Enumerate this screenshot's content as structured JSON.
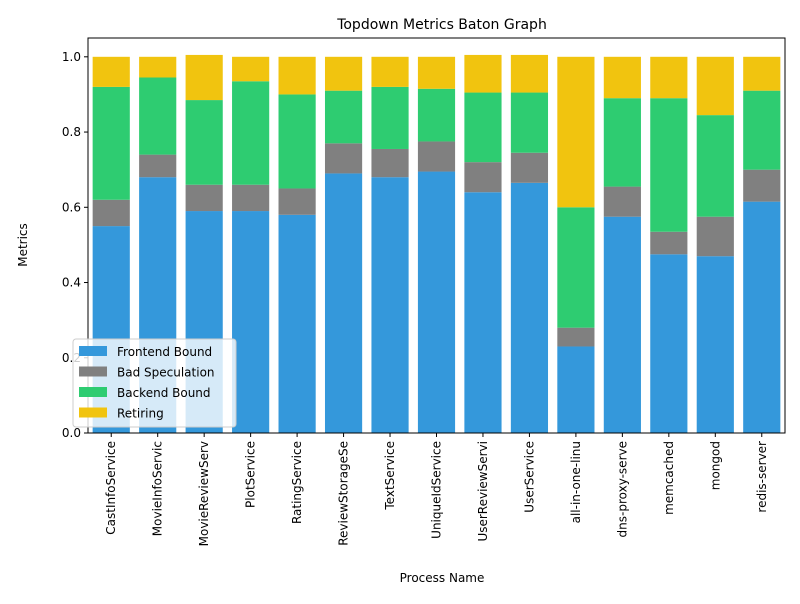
{
  "chart_data": {
    "type": "bar",
    "stacked": true,
    "title": "Topdown Metrics Baton Graph",
    "xlabel": "Process Name",
    "ylabel": "Metrics",
    "ylim": [
      0,
      1.05
    ],
    "yticks": [
      "0.0",
      "0.2",
      "0.4",
      "0.6",
      "0.8",
      "1.0"
    ],
    "ytick_values": [
      0,
      0.2,
      0.4,
      0.6,
      0.8,
      1.0
    ],
    "legend_position": "lower-left",
    "grid": false,
    "categories": [
      "CastInfoService",
      "MovieInfoServic",
      "MovieReviewServ",
      "PlotService",
      "RatingService",
      "ReviewStorageSe",
      "TextService",
      "UniqueIdService",
      "UserReviewServi",
      "UserService",
      "all-in-one-linu",
      "dns-proxy-serve",
      "memcached",
      "mongod",
      "redis-server"
    ],
    "series": [
      {
        "name": "Frontend Bound",
        "color": "#3498db",
        "values": [
          0.55,
          0.68,
          0.59,
          0.59,
          0.58,
          0.69,
          0.68,
          0.695,
          0.64,
          0.665,
          0.23,
          0.575,
          0.475,
          0.47,
          0.615
        ]
      },
      {
        "name": "Bad Speculation",
        "color": "#808080",
        "values": [
          0.07,
          0.06,
          0.07,
          0.07,
          0.07,
          0.08,
          0.075,
          0.08,
          0.08,
          0.08,
          0.05,
          0.08,
          0.06,
          0.105,
          0.085
        ]
      },
      {
        "name": "Backend Bound",
        "color": "#2ecc71",
        "values": [
          0.3,
          0.205,
          0.225,
          0.275,
          0.25,
          0.14,
          0.165,
          0.14,
          0.185,
          0.16,
          0.32,
          0.235,
          0.355,
          0.27,
          0.21
        ]
      },
      {
        "name": "Retiring",
        "color": "#f1c40f",
        "values": [
          0.08,
          0.055,
          0.12,
          0.065,
          0.1,
          0.09,
          0.08,
          0.085,
          0.1,
          0.1,
          0.4,
          0.11,
          0.11,
          0.155,
          0.09
        ]
      }
    ]
  }
}
